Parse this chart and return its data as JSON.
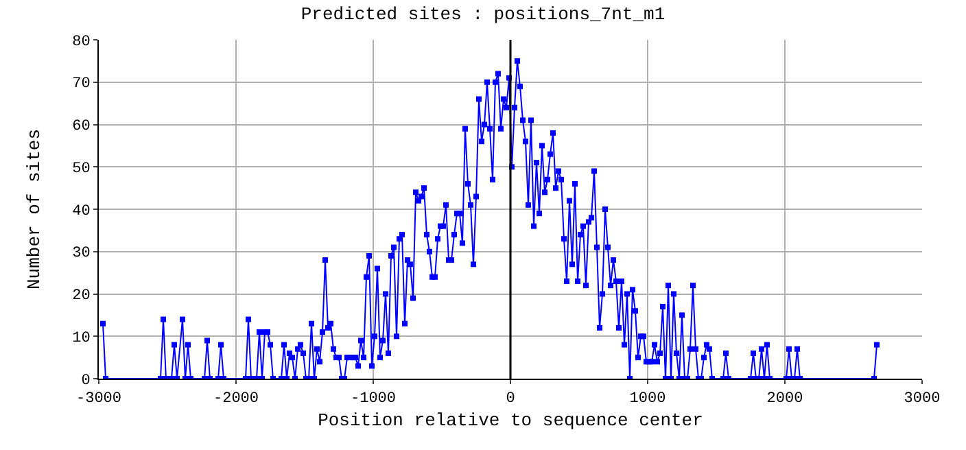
{
  "chart_data": {
    "type": "line",
    "title": "Predicted sites : positions_7nt_m1",
    "xlabel": "Position relative to sequence center",
    "ylabel": "Number of sites",
    "series": [
      {
        "color": "#0000ff",
        "x": [
          -2970,
          -2950,
          -2550,
          -2530,
          -2510,
          -2470,
          -2450,
          -2430,
          -2390,
          -2370,
          -2350,
          -2330,
          -2230,
          -2210,
          -2190,
          -2130,
          -2110,
          -2090,
          -1930,
          -1910,
          -1890,
          -1850,
          -1830,
          -1810,
          -1790,
          -1770,
          -1750,
          -1730,
          -1670,
          -1650,
          -1630,
          -1610,
          -1590,
          -1570,
          -1550,
          -1530,
          -1510,
          -1490,
          -1470,
          -1450,
          -1430,
          -1410,
          -1390,
          -1370,
          -1350,
          -1330,
          -1310,
          -1290,
          -1270,
          -1250,
          -1230,
          -1210,
          -1190,
          -1170,
          -1150,
          -1130,
          -1110,
          -1090,
          -1070,
          -1050,
          -1030,
          -1010,
          -990,
          -970,
          -950,
          -930,
          -910,
          -890,
          -870,
          -850,
          -830,
          -810,
          -790,
          -770,
          -750,
          -730,
          -710,
          -690,
          -670,
          -650,
          -630,
          -610,
          -590,
          -570,
          -550,
          -530,
          -510,
          -490,
          -470,
          -450,
          -430,
          -410,
          -390,
          -370,
          -350,
          -330,
          -310,
          -290,
          -270,
          -250,
          -230,
          -210,
          -190,
          -170,
          -150,
          -130,
          -110,
          -90,
          -70,
          -50,
          -30,
          -10,
          10,
          30,
          50,
          70,
          90,
          110,
          130,
          150,
          170,
          190,
          210,
          230,
          250,
          270,
          290,
          310,
          330,
          350,
          370,
          390,
          410,
          430,
          450,
          470,
          490,
          510,
          530,
          550,
          570,
          590,
          610,
          630,
          650,
          670,
          690,
          710,
          730,
          750,
          770,
          790,
          810,
          830,
          850,
          870,
          890,
          910,
          930,
          950,
          970,
          990,
          1010,
          1030,
          1050,
          1070,
          1090,
          1110,
          1130,
          1150,
          1170,
          1190,
          1210,
          1230,
          1250,
          1270,
          1290,
          1310,
          1330,
          1350,
          1370,
          1390,
          1410,
          1430,
          1450,
          1470,
          1550,
          1570,
          1590,
          1750,
          1770,
          1790,
          1810,
          1830,
          1850,
          1870,
          1890,
          2010,
          2030,
          2050,
          2070,
          2090,
          2110,
          2650,
          2670
        ],
        "values": [
          13,
          0,
          0,
          14,
          0,
          0,
          8,
          0,
          14,
          0,
          8,
          0,
          0,
          9,
          0,
          0,
          8,
          0,
          0,
          14,
          0,
          0,
          11,
          0,
          11,
          11,
          8,
          0,
          0,
          8,
          0,
          6,
          5,
          0,
          7,
          8,
          6,
          0,
          0,
          13,
          0,
          7,
          4,
          11,
          28,
          12,
          13,
          7,
          5,
          5,
          0,
          0,
          5,
          5,
          5,
          5,
          3,
          9,
          5,
          24,
          29,
          3,
          10,
          26,
          5,
          9,
          20,
          6,
          29,
          31,
          10,
          33,
          34,
          13,
          28,
          27,
          19,
          44,
          42,
          43,
          45,
          34,
          30,
          24,
          24,
          33,
          36,
          36,
          41,
          28,
          28,
          34,
          39,
          39,
          32,
          59,
          46,
          41,
          27,
          43,
          66,
          56,
          60,
          70,
          59,
          47,
          70,
          72,
          59,
          66,
          64,
          71,
          50,
          64,
          75,
          69,
          61,
          56,
          41,
          61,
          36,
          51,
          39,
          55,
          44,
          47,
          53,
          58,
          45,
          49,
          47,
          33,
          23,
          42,
          27,
          46,
          23,
          34,
          36,
          22,
          37,
          38,
          49,
          31,
          12,
          20,
          40,
          31,
          22,
          28,
          23,
          12,
          23,
          8,
          20,
          0,
          21,
          16,
          5,
          10,
          10,
          4,
          4,
          4,
          8,
          4,
          6,
          17,
          0,
          22,
          0,
          20,
          6,
          0,
          15,
          0,
          0,
          7,
          22,
          7,
          0,
          0,
          5,
          8,
          7,
          0,
          0,
          6,
          0,
          0,
          6,
          0,
          0,
          7,
          0,
          8,
          0,
          0,
          7,
          0,
          0,
          7,
          0,
          0,
          8
        ]
      }
    ],
    "xlim": [
      -3000,
      3000
    ],
    "xticks": [
      -3000,
      -2000,
      -1000,
      0,
      1000,
      2000,
      3000
    ],
    "ylim": [
      0,
      80
    ],
    "yticks": [
      0,
      10,
      20,
      30,
      40,
      50,
      60,
      70,
      80
    ],
    "ref_lines": [
      {
        "axis": "x",
        "value": 0,
        "color": "#000000"
      }
    ],
    "grid": true,
    "marker": "square",
    "line_style": "solid"
  }
}
